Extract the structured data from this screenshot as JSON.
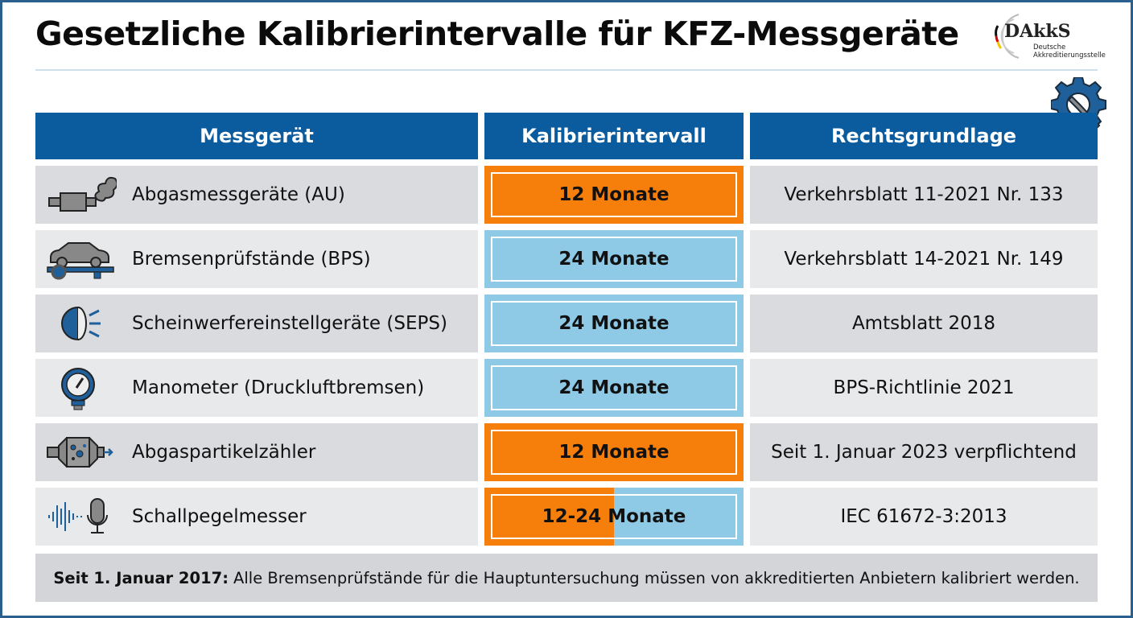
{
  "title": "Gesetzliche Kalibrierintervalle für KFZ-Messgeräte",
  "logo": {
    "name": "DAkkS",
    "subtitle_line1": "Deutsche",
    "subtitle_line2": "Akkreditierungsstelle"
  },
  "headers": [
    "Messgerät",
    "Kalibrierintervall",
    "Rechtsgrundlage"
  ],
  "colors": {
    "header": "#0b5c9e",
    "interval_12": "#f57f0a",
    "interval_24": "#8ecae6",
    "row_dark": "#d9dbde",
    "row_light": "#e7e9eb"
  },
  "rows": [
    {
      "icon": "exhaust-smoke-icon",
      "device": "Abgasmessgeräte (AU)",
      "interval": "12 Monate",
      "interval_type": "12",
      "law": "Verkehrsblatt 11-2021 Nr. 133"
    },
    {
      "icon": "car-on-test-stand-icon",
      "device": "Bremsenprüfstände (BPS)",
      "interval": "24 Monate",
      "interval_type": "24",
      "law": "Verkehrsblatt 14-2021 Nr. 149"
    },
    {
      "icon": "headlight-icon",
      "device": "Scheinwerfereinstellgeräte (SEPS)",
      "interval": "24 Monate",
      "interval_type": "24",
      "law": "Amtsblatt 2018"
    },
    {
      "icon": "pressure-gauge-icon",
      "device": "Manometer (Druckluftbremsen)",
      "interval": "24 Monate",
      "interval_type": "24",
      "law": "BPS-Richtlinie 2021"
    },
    {
      "icon": "particle-filter-icon",
      "device": "Abgaspartikelzähler",
      "interval": "12 Monate",
      "interval_type": "12",
      "law": "Seit 1. Januar 2023 verpflichtend"
    },
    {
      "icon": "sound-microphone-icon",
      "device": "Schallpegelmesser",
      "interval": "12-24 Monate",
      "interval_type": "mixed",
      "law": "IEC 61672-3:2013"
    }
  ],
  "footer": {
    "bold": "Seit 1. Januar 2017:",
    "text": "Alle Bremsenprüfstände für die Hauptuntersuchung müssen von akkreditierten Anbietern kalibriert werden."
  }
}
